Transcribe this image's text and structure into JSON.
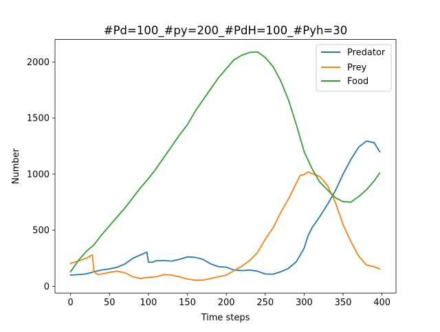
{
  "chart_data": {
    "type": "line",
    "title": "#Pd=100_#py=200_#PdH=100_#Pyh=30",
    "xlabel": "Time steps",
    "ylabel": "Number",
    "xlim": [
      -20,
      418
    ],
    "ylim": [
      -60,
      2200
    ],
    "xticks": [
      0,
      50,
      100,
      150,
      200,
      250,
      300,
      350,
      400
    ],
    "yticks": [
      0,
      500,
      1000,
      1500,
      2000
    ],
    "grid": false,
    "legend_position": "upper right",
    "series": [
      {
        "name": "Predator",
        "color": "#1f77b4",
        "points": [
          [
            0,
            100
          ],
          [
            10,
            105
          ],
          [
            20,
            110
          ],
          [
            30,
            130
          ],
          [
            40,
            145
          ],
          [
            50,
            155
          ],
          [
            60,
            170
          ],
          [
            70,
            200
          ],
          [
            80,
            250
          ],
          [
            90,
            280
          ],
          [
            98,
            305
          ],
          [
            100,
            215
          ],
          [
            105,
            215
          ],
          [
            110,
            228
          ],
          [
            120,
            230
          ],
          [
            130,
            225
          ],
          [
            140,
            240
          ],
          [
            150,
            262
          ],
          [
            160,
            258
          ],
          [
            170,
            240
          ],
          [
            180,
            200
          ],
          [
            190,
            175
          ],
          [
            200,
            170
          ],
          [
            210,
            145
          ],
          [
            220,
            140
          ],
          [
            230,
            145
          ],
          [
            240,
            135
          ],
          [
            250,
            110
          ],
          [
            260,
            108
          ],
          [
            270,
            130
          ],
          [
            280,
            160
          ],
          [
            290,
            220
          ],
          [
            300,
            340
          ],
          [
            305,
            450
          ],
          [
            310,
            520
          ],
          [
            320,
            620
          ],
          [
            330,
            730
          ],
          [
            340,
            850
          ],
          [
            350,
            1000
          ],
          [
            360,
            1130
          ],
          [
            370,
            1240
          ],
          [
            380,
            1295
          ],
          [
            390,
            1280
          ],
          [
            397,
            1200
          ]
        ]
      },
      {
        "name": "Prey",
        "color": "#ff7f0e",
        "points": [
          [
            0,
            205
          ],
          [
            10,
            225
          ],
          [
            20,
            250
          ],
          [
            28,
            280
          ],
          [
            30,
            130
          ],
          [
            35,
            105
          ],
          [
            40,
            110
          ],
          [
            50,
            125
          ],
          [
            60,
            135
          ],
          [
            70,
            120
          ],
          [
            80,
            85
          ],
          [
            90,
            70
          ],
          [
            100,
            80
          ],
          [
            110,
            85
          ],
          [
            120,
            105
          ],
          [
            130,
            100
          ],
          [
            140,
            85
          ],
          [
            150,
            65
          ],
          [
            160,
            55
          ],
          [
            170,
            55
          ],
          [
            180,
            70
          ],
          [
            190,
            85
          ],
          [
            200,
            100
          ],
          [
            210,
            140
          ],
          [
            220,
            180
          ],
          [
            230,
            230
          ],
          [
            240,
            300
          ],
          [
            250,
            420
          ],
          [
            260,
            520
          ],
          [
            270,
            660
          ],
          [
            280,
            780
          ],
          [
            290,
            920
          ],
          [
            295,
            990
          ],
          [
            300,
            995
          ],
          [
            305,
            1020
          ],
          [
            310,
            1005
          ],
          [
            320,
            980
          ],
          [
            330,
            900
          ],
          [
            340,
            750
          ],
          [
            350,
            550
          ],
          [
            360,
            400
          ],
          [
            370,
            270
          ],
          [
            380,
            190
          ],
          [
            390,
            175
          ],
          [
            397,
            155
          ]
        ]
      },
      {
        "name": "Food",
        "color": "#2ca02c",
        "points": [
          [
            0,
            130
          ],
          [
            10,
            230
          ],
          [
            20,
            310
          ],
          [
            30,
            370
          ],
          [
            40,
            460
          ],
          [
            50,
            540
          ],
          [
            60,
            620
          ],
          [
            70,
            700
          ],
          [
            80,
            790
          ],
          [
            90,
            880
          ],
          [
            100,
            960
          ],
          [
            110,
            1050
          ],
          [
            120,
            1150
          ],
          [
            130,
            1250
          ],
          [
            140,
            1350
          ],
          [
            150,
            1440
          ],
          [
            160,
            1560
          ],
          [
            170,
            1660
          ],
          [
            180,
            1760
          ],
          [
            190,
            1860
          ],
          [
            200,
            1940
          ],
          [
            210,
            2020
          ],
          [
            220,
            2060
          ],
          [
            230,
            2085
          ],
          [
            240,
            2090
          ],
          [
            250,
            2040
          ],
          [
            260,
            1960
          ],
          [
            270,
            1830
          ],
          [
            280,
            1660
          ],
          [
            290,
            1440
          ],
          [
            300,
            1200
          ],
          [
            310,
            1050
          ],
          [
            320,
            930
          ],
          [
            330,
            860
          ],
          [
            340,
            790
          ],
          [
            350,
            755
          ],
          [
            360,
            750
          ],
          [
            370,
            800
          ],
          [
            380,
            860
          ],
          [
            390,
            940
          ],
          [
            397,
            1010
          ]
        ]
      }
    ]
  }
}
